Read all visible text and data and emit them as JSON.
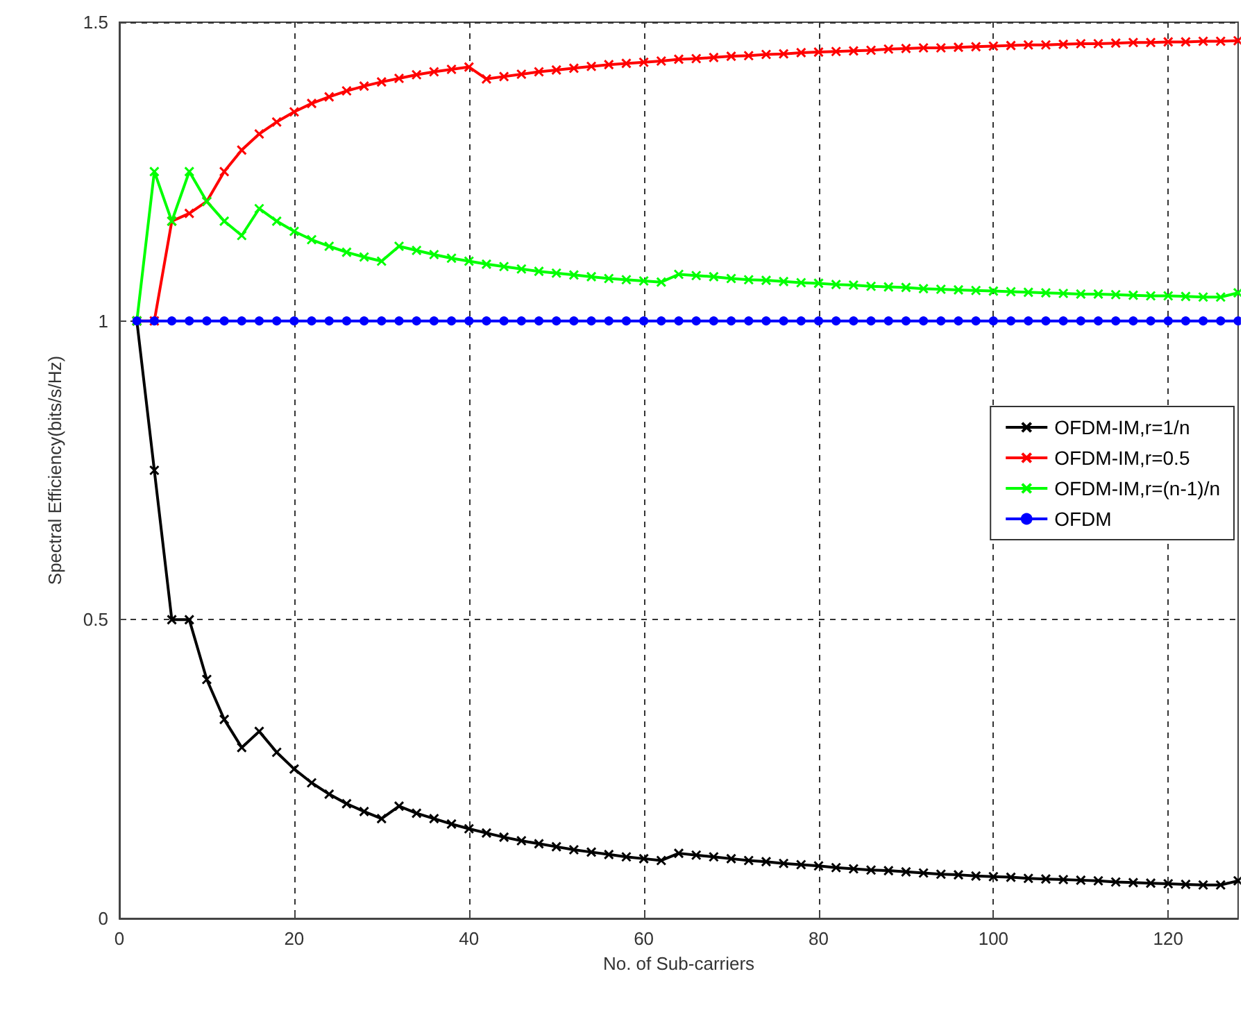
{
  "chart_data": {
    "type": "line",
    "xlabel": "No. of Sub-carriers",
    "ylabel": "Spectral Efficiency(bits/s/Hz)",
    "x": [
      2,
      4,
      6,
      8,
      10,
      12,
      14,
      16,
      18,
      20,
      22,
      24,
      26,
      28,
      30,
      32,
      34,
      36,
      38,
      40,
      42,
      44,
      46,
      48,
      50,
      52,
      54,
      56,
      58,
      60,
      62,
      64,
      66,
      68,
      70,
      72,
      74,
      76,
      78,
      80,
      82,
      84,
      86,
      88,
      90,
      92,
      94,
      96,
      98,
      100,
      102,
      104,
      106,
      108,
      110,
      112,
      114,
      116,
      118,
      120,
      122,
      124,
      126,
      128
    ],
    "series": [
      {
        "name": "OFDM-IM,r=1/n",
        "color": "#000000",
        "marker": "cross",
        "values": [
          1,
          0.75,
          0.5,
          0.5,
          0.4,
          0.333,
          0.286,
          0.313,
          0.278,
          0.25,
          0.227,
          0.208,
          0.192,
          0.179,
          0.167,
          0.188,
          0.176,
          0.167,
          0.158,
          0.15,
          0.143,
          0.136,
          0.13,
          0.125,
          0.12,
          0.115,
          0.111,
          0.107,
          0.103,
          0.1,
          0.097,
          0.109,
          0.106,
          0.103,
          0.1,
          0.097,
          0.095,
          0.092,
          0.09,
          0.088,
          0.085,
          0.083,
          0.081,
          0.08,
          0.078,
          0.076,
          0.074,
          0.073,
          0.071,
          0.07,
          0.069,
          0.067,
          0.066,
          0.065,
          0.064,
          0.063,
          0.061,
          0.06,
          0.059,
          0.058,
          0.057,
          0.056,
          0.056,
          0.063
        ]
      },
      {
        "name": "OFDM-IM,r=0.5",
        "color": "#ff0000",
        "marker": "cross",
        "values": [
          1,
          1,
          1.167,
          1.18,
          1.2,
          1.25,
          1.286,
          1.313,
          1.333,
          1.35,
          1.364,
          1.375,
          1.385,
          1.393,
          1.4,
          1.406,
          1.412,
          1.417,
          1.421,
          1.425,
          1.405,
          1.409,
          1.413,
          1.417,
          1.42,
          1.423,
          1.426,
          1.429,
          1.431,
          1.433,
          1.435,
          1.438,
          1.439,
          1.441,
          1.443,
          1.444,
          1.446,
          1.447,
          1.449,
          1.45,
          1.451,
          1.452,
          1.453,
          1.455,
          1.456,
          1.457,
          1.457,
          1.458,
          1.459,
          1.46,
          1.461,
          1.462,
          1.462,
          1.463,
          1.464,
          1.464,
          1.465,
          1.466,
          1.466,
          1.467,
          1.467,
          1.468,
          1.468,
          1.469
        ]
      },
      {
        "name": "OFDM-IM,r=(n-1)/n",
        "color": "#00ff00",
        "marker": "cross",
        "values": [
          1,
          1.25,
          1.167,
          1.25,
          1.2,
          1.167,
          1.143,
          1.188,
          1.167,
          1.15,
          1.136,
          1.125,
          1.115,
          1.107,
          1.1,
          1.125,
          1.118,
          1.111,
          1.105,
          1.1,
          1.095,
          1.091,
          1.087,
          1.083,
          1.08,
          1.077,
          1.074,
          1.071,
          1.069,
          1.067,
          1.065,
          1.078,
          1.076,
          1.074,
          1.071,
          1.069,
          1.068,
          1.066,
          1.064,
          1.063,
          1.061,
          1.06,
          1.058,
          1.057,
          1.056,
          1.054,
          1.053,
          1.052,
          1.051,
          1.05,
          1.049,
          1.048,
          1.047,
          1.046,
          1.045,
          1.045,
          1.044,
          1.043,
          1.042,
          1.042,
          1.041,
          1.04,
          1.04,
          1.047
        ]
      },
      {
        "name": "OFDM",
        "color": "#0000ff",
        "marker": "circle",
        "values": [
          1,
          1,
          1,
          1,
          1,
          1,
          1,
          1,
          1,
          1,
          1,
          1,
          1,
          1,
          1,
          1,
          1,
          1,
          1,
          1,
          1,
          1,
          1,
          1,
          1,
          1,
          1,
          1,
          1,
          1,
          1,
          1,
          1,
          1,
          1,
          1,
          1,
          1,
          1,
          1,
          1,
          1,
          1,
          1,
          1,
          1,
          1,
          1,
          1,
          1,
          1,
          1,
          1,
          1,
          1,
          1,
          1,
          1,
          1,
          1,
          1,
          1,
          1,
          1
        ]
      }
    ],
    "xlim": [
      0,
      128
    ],
    "xticks": [
      0,
      20,
      40,
      60,
      80,
      100,
      120
    ],
    "ylim": [
      0,
      1.5
    ],
    "yticks": [
      0,
      0.5,
      1,
      1.5
    ],
    "grid": true,
    "legend": "right",
    "line_style": "solid"
  }
}
